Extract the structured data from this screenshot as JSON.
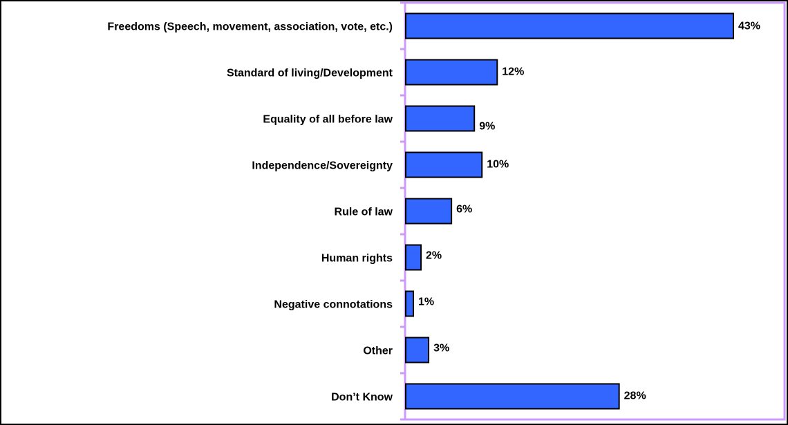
{
  "chart_data": {
    "type": "bar",
    "orientation": "horizontal",
    "title": "",
    "categories": [
      "Freedoms (Speech, movement, association, vote, etc.)",
      "Standard of living/Development",
      "Equality of all before law",
      "Independence/Sovereignty",
      "Rule of law",
      "Human rights",
      "Negative connotations",
      "Other",
      "Don’t Know"
    ],
    "values": [
      43,
      12,
      9,
      10,
      6,
      2,
      1,
      3,
      28
    ],
    "value_labels": [
      "43%",
      "12%",
      "9%",
      "10%",
      "6%",
      "2%",
      "1%",
      "3%",
      "28%"
    ],
    "xlim": [
      0,
      43
    ],
    "xlabel": "",
    "ylabel": "",
    "grid": false,
    "legend": "none",
    "colors": {
      "bar_fill": "#3366FF",
      "bar_stroke": "#000000",
      "plot_border": "#CC99FF"
    }
  }
}
